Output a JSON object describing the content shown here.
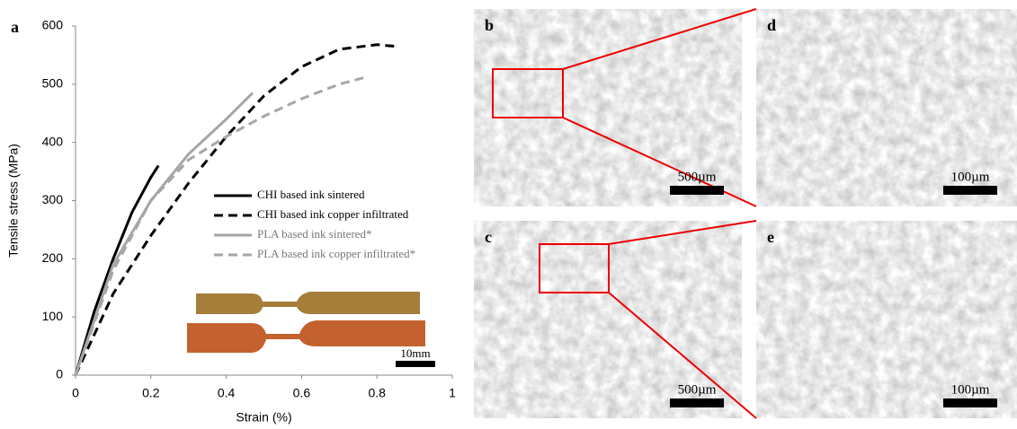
{
  "chart_data": {
    "type": "line",
    "panel_label": "a",
    "xlabel": "Strain (%)",
    "ylabel": "Tensile stress (MPa)",
    "xlim": [
      0,
      1
    ],
    "ylim": [
      0,
      600
    ],
    "xticks": [
      0,
      0.2,
      0.4,
      0.6,
      0.8,
      1
    ],
    "yticks": [
      0,
      100,
      200,
      300,
      400,
      500,
      600
    ],
    "inset_scale_bar": "10mm",
    "series": [
      {
        "name": "CHI based ink sintered",
        "color": "#000000",
        "dash": false,
        "x": [
          0,
          0.05,
          0.1,
          0.15,
          0.2,
          0.22
        ],
        "values": [
          0,
          110,
          200,
          280,
          340,
          360
        ]
      },
      {
        "name": "CHI based ink copper infiltrated",
        "color": "#000000",
        "dash": true,
        "x": [
          0,
          0.1,
          0.2,
          0.3,
          0.4,
          0.5,
          0.6,
          0.7,
          0.8,
          0.85
        ],
        "values": [
          0,
          140,
          240,
          330,
          410,
          480,
          530,
          560,
          568,
          565
        ]
      },
      {
        "name": "PLA based ink sintered*",
        "color": "#a6a6a6",
        "dash": false,
        "x": [
          0,
          0.1,
          0.2,
          0.3,
          0.4,
          0.47
        ],
        "values": [
          0,
          190,
          300,
          380,
          440,
          485
        ]
      },
      {
        "name": "PLA based ink copper infiltrated*",
        "color": "#a6a6a6",
        "dash": true,
        "x": [
          0,
          0.1,
          0.2,
          0.3,
          0.4,
          0.5,
          0.6,
          0.7,
          0.77
        ],
        "values": [
          0,
          180,
          300,
          370,
          410,
          445,
          475,
          500,
          512
        ]
      }
    ]
  },
  "panels": [
    {
      "label": "b",
      "scale_bar": "500µm"
    },
    {
      "label": "d",
      "scale_bar": "100µm"
    },
    {
      "label": "c",
      "scale_bar": "500µm"
    },
    {
      "label": "e",
      "scale_bar": "100µm"
    }
  ]
}
